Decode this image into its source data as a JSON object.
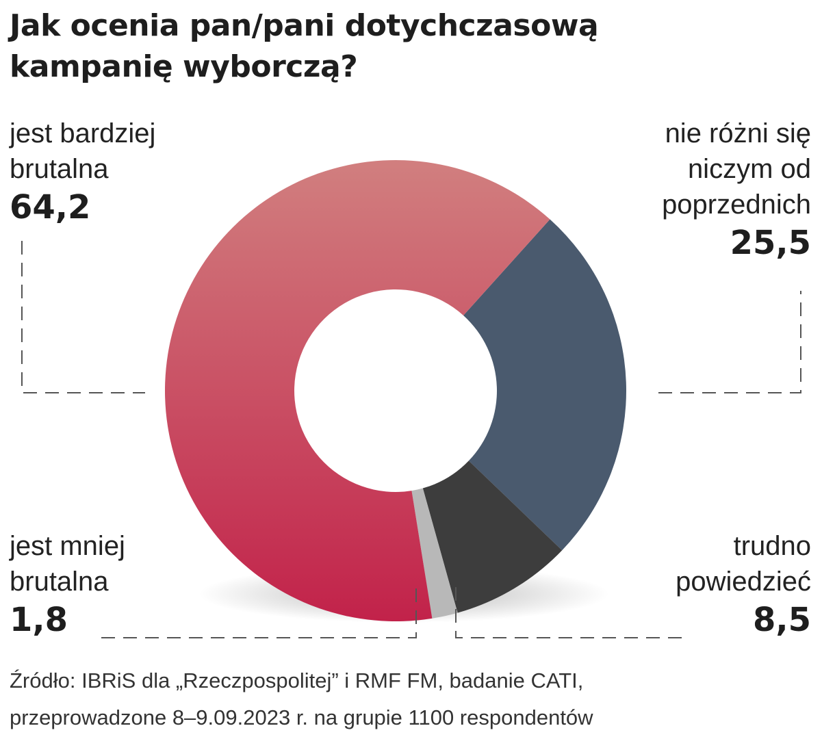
{
  "title_lines": [
    "Jak ocenia pan/pani dotychczasową",
    "kampanię wyborczą?"
  ],
  "labels": {
    "bardziej": {
      "lines": [
        "jest bardziej",
        "brutalna"
      ],
      "value": "64,2"
    },
    "nie_rozni": {
      "lines": [
        "nie różni się",
        "niczym od",
        "poprzednich"
      ],
      "value": "25,5"
    },
    "mniej": {
      "lines": [
        "jest mniej",
        "brutalna"
      ],
      "value": "1,8"
    },
    "trudno": {
      "lines": [
        "trudno",
        "powiedzieć"
      ],
      "value": "8,5"
    }
  },
  "source_lines": [
    "Źródło: IBRiS dla „Rzeczpospolitej” i RMF FM, badanie CATI,",
    "przeprowadzone 8–9.09.2023 r. na grupie 1100 respondentów"
  ],
  "chart_data": {
    "type": "pie",
    "subtype": "donut",
    "title": "Jak ocenia pan/pani dotychczasową kampanię wyborczą?",
    "slices": [
      {
        "label": "nie różni się niczym od poprzednich",
        "value": 25.5,
        "color": "#4a5a6e"
      },
      {
        "label": "trudno powiedzieć",
        "value": 8.5,
        "color": "#3d3d3d"
      },
      {
        "label": "jest mniej brutalna",
        "value": 1.8,
        "color": "#b8b8b8"
      },
      {
        "label": "jest bardziej brutalna",
        "value": 64.2,
        "color": "#c42a4a"
      }
    ],
    "legend": "none",
    "colors": {
      "main_top": "#d17f7f",
      "main_bottom": "#c2224a"
    }
  }
}
